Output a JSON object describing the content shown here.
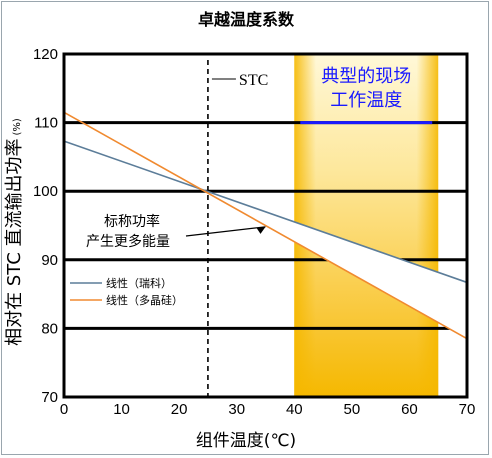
{
  "chart_data": {
    "type": "line",
    "title": "卓越温度系数",
    "xlabel": "组件温度(℃)",
    "ylabel": "相对在 STC 直流输出功率",
    "ylabel_unit": "(%)",
    "xlim": [
      0,
      70
    ],
    "ylim": [
      70,
      120
    ],
    "x_ticks": [
      "0",
      "10",
      "20",
      "30",
      "40",
      "50",
      "60",
      "70"
    ],
    "y_ticks": [
      "70",
      "80",
      "90",
      "100",
      "110",
      "120"
    ],
    "grid": "horizontal",
    "series": [
      {
        "name": "线性（瑞科）",
        "color": "#5c7d99",
        "x": [
          0,
          70
        ],
        "y": [
          107.3,
          86.7
        ]
      },
      {
        "name": "线性（多晶硅）",
        "color": "#f08a30",
        "x": [
          0,
          70
        ],
        "y": [
          111.5,
          78.5
        ]
      }
    ],
    "stc_line": {
      "x": 25,
      "label": "STC"
    },
    "operating_region": {
      "x": [
        40,
        65
      ],
      "y_mark": 110,
      "label_line1": "典型的现场",
      "label_line2": "工作温度"
    },
    "annotation": {
      "line1": "标称功率",
      "line2": "产生更多能量",
      "x": 35,
      "y": 95.1
    },
    "legend_position": "lower-left",
    "colors": {
      "region_outer": "#f5b800",
      "region_inner": "#fff7d6",
      "region_label": "#1a1aff"
    }
  }
}
